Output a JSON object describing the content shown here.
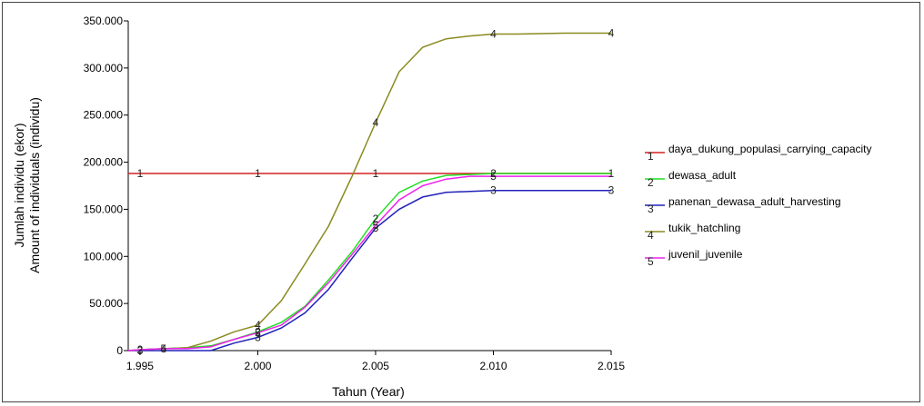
{
  "chart_data": {
    "type": "line",
    "title": "",
    "xlabel": "Tahun (Year)",
    "ylabel_lines": [
      "Jumlah individu (ekor)",
      "Amount of individuals (individu)"
    ],
    "xlim": [
      1994.5,
      2015
    ],
    "ylim": [
      0,
      350000
    ],
    "x_ticks": [
      1995,
      2000,
      2005,
      2010,
      2015
    ],
    "x_tick_labels": [
      "1.995",
      "2.000",
      "2.005",
      "2.010",
      "2.015"
    ],
    "y_ticks": [
      0,
      50000,
      100000,
      150000,
      200000,
      250000,
      300000,
      350000
    ],
    "y_tick_labels": [
      "0",
      "50.000",
      "100.000",
      "150.000",
      "200.000",
      "250.000",
      "300.000",
      "350.000"
    ],
    "grid": false,
    "legend_position": "right",
    "series": [
      {
        "name": "daya_dukung_populasi_carrying_capacity",
        "marker": "1",
        "color": "#d42020",
        "x": [
          1994.5,
          2015
        ],
        "y": [
          188000,
          188000
        ],
        "marker_x": [
          1995,
          2000,
          2005,
          2015
        ]
      },
      {
        "name": "dewasa_adult",
        "marker": "2",
        "color": "#22dd22",
        "x": [
          1994.5,
          1995,
          1996,
          1997,
          1998,
          1999,
          2000,
          2001,
          2002,
          2003,
          2004,
          2005,
          2006,
          2007,
          2008,
          2009,
          2010,
          2011,
          2012,
          2013,
          2014,
          2015
        ],
        "y": [
          0,
          1000,
          2000,
          3000,
          5000,
          12000,
          20000,
          30000,
          47000,
          75000,
          105000,
          140000,
          168000,
          180000,
          186000,
          187000,
          188000,
          188000,
          188000,
          188000,
          188000,
          188000
        ],
        "marker_x": [
          1995,
          2000,
          2005,
          2010
        ]
      },
      {
        "name": "panenan_dewasa_adult_harvesting",
        "marker": "3",
        "color": "#2222bb",
        "x": [
          1994.5,
          1995,
          1996,
          1997,
          1998,
          1999,
          2000,
          2001,
          2002,
          2003,
          2004,
          2005,
          2006,
          2007,
          2008,
          2009,
          2010,
          2011,
          2012,
          2013,
          2014,
          2015
        ],
        "y": [
          0,
          0,
          0,
          0,
          0,
          8000,
          14000,
          24000,
          40000,
          65000,
          98000,
          130000,
          150000,
          163000,
          168000,
          169000,
          170000,
          170000,
          170000,
          170000,
          170000,
          170000
        ],
        "marker_x": [
          1995,
          2000,
          2005,
          2010,
          2015
        ]
      },
      {
        "name": "tukik_hatchling",
        "marker": "4",
        "color": "#8a8a20",
        "x": [
          1994.5,
          1995,
          1996,
          1997,
          1998,
          1999,
          2000,
          2001,
          2002,
          2003,
          2004,
          2005,
          2006,
          2007,
          2008,
          2009,
          2010,
          2011,
          2012,
          2013,
          2014,
          2015
        ],
        "y": [
          0,
          1000,
          2000,
          3000,
          10000,
          20000,
          27000,
          53000,
          92000,
          132000,
          185000,
          242000,
          296000,
          322000,
          331000,
          334000,
          336000,
          336000,
          336500,
          337000,
          337000,
          337000
        ],
        "marker_x": [
          1996,
          2000,
          2005,
          2010,
          2015
        ]
      },
      {
        "name": "juvenil_juvenile",
        "marker": "5",
        "color": "#ee22ee",
        "x": [
          1994.5,
          1995,
          1996,
          1997,
          1998,
          1999,
          2000,
          2001,
          2002,
          2003,
          2004,
          2005,
          2006,
          2007,
          2008,
          2009,
          2010,
          2011,
          2012,
          2013,
          2014,
          2015
        ],
        "y": [
          0,
          1000,
          2000,
          2000,
          4000,
          12000,
          19000,
          27000,
          46000,
          72000,
          102000,
          133000,
          160000,
          175000,
          182000,
          185000,
          185000,
          185000,
          185000,
          185000,
          185000,
          185000
        ],
        "marker_x": [
          1996,
          2000,
          2005,
          2010
        ]
      }
    ]
  }
}
